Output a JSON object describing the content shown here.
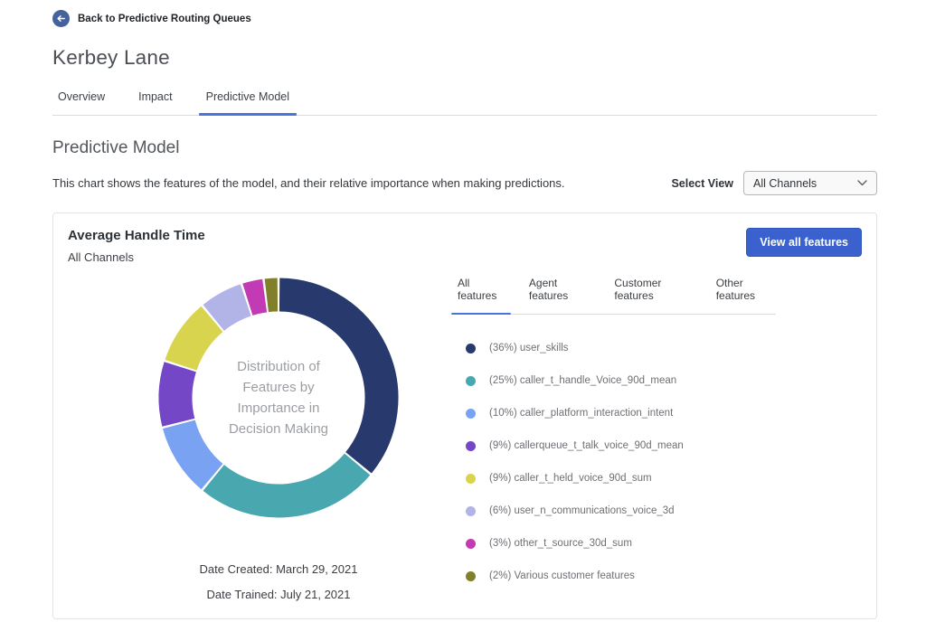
{
  "back_link": {
    "label": "Back to Predictive Routing Queues"
  },
  "page_title": "Kerbey Lane",
  "page_tabs": [
    {
      "label": "Overview",
      "active": false
    },
    {
      "label": "Impact",
      "active": false
    },
    {
      "label": "Predictive Model",
      "active": true
    }
  ],
  "section": {
    "title": "Predictive Model",
    "description": "This chart shows the features of the model, and their relative importance when making predictions.",
    "select_view_label": "Select View",
    "select_view_value": "All Channels"
  },
  "card": {
    "title": "Average Handle Time",
    "subtitle": "All Channels",
    "view_all_button": "View all features",
    "feature_tabs": [
      {
        "label": "All features",
        "active": true
      },
      {
        "label": "Agent features",
        "active": false
      },
      {
        "label": "Customer features",
        "active": false
      },
      {
        "label": "Other features",
        "active": false
      }
    ],
    "date_created": "Date Created: March 29, 2021",
    "date_trained": "Date Trained: July 21, 2021"
  },
  "chart_data": {
    "type": "pie",
    "donut": true,
    "title": "Distribution of Features by Importance in Decision Making",
    "center_label_lines": [
      "Distribution of",
      "Features by",
      "Importance in",
      "Decision Making"
    ],
    "start_angle_deg": 0,
    "direction": "clockwise",
    "legend_position": "right",
    "series": [
      {
        "name": "user_skills",
        "value": 36,
        "color": "#28396e"
      },
      {
        "name": "caller_t_handle_Voice_90d_mean",
        "value": 25,
        "color": "#49a8af"
      },
      {
        "name": "caller_platform_interaction_intent",
        "value": 10,
        "color": "#79a3f2"
      },
      {
        "name": "callerqueue_t_talk_voice_90d_mean",
        "value": 9,
        "color": "#7347c5"
      },
      {
        "name": "caller_t_held_voice_90d_sum",
        "value": 9,
        "color": "#d9d44e"
      },
      {
        "name": "user_n_communications_voice_3d",
        "value": 6,
        "color": "#b2b4e8"
      },
      {
        "name": "other_t_source_30d_sum",
        "value": 3,
        "color": "#c23ab4"
      },
      {
        "name": "Various customer features",
        "value": 2,
        "color": "#80802b"
      }
    ]
  },
  "colors": {
    "accent_blue": "#3a61cd",
    "tab_underline": "#4a74dd",
    "back_circle": "#44639e"
  }
}
